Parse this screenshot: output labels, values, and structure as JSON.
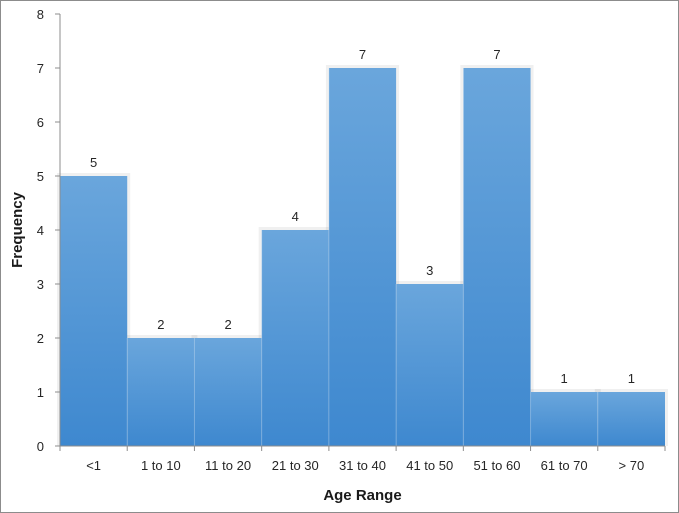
{
  "chart_data": {
    "type": "bar",
    "title": "",
    "xlabel": "Age Range",
    "ylabel": "Frequency",
    "categories": [
      "<1",
      "1 to 10",
      "11 to 20",
      "21 to 30",
      "31 to 40",
      "41 to 50",
      "51 to 60",
      "61 to 70",
      "> 70"
    ],
    "values": [
      5,
      2,
      2,
      4,
      7,
      3,
      7,
      1,
      1
    ],
    "ylim": [
      0,
      8
    ],
    "yticks": [
      0,
      1,
      2,
      3,
      4,
      5,
      6,
      7,
      8
    ],
    "grid": false,
    "legend": "none",
    "data_labels": true,
    "bar_color": "#5b9bd5"
  }
}
